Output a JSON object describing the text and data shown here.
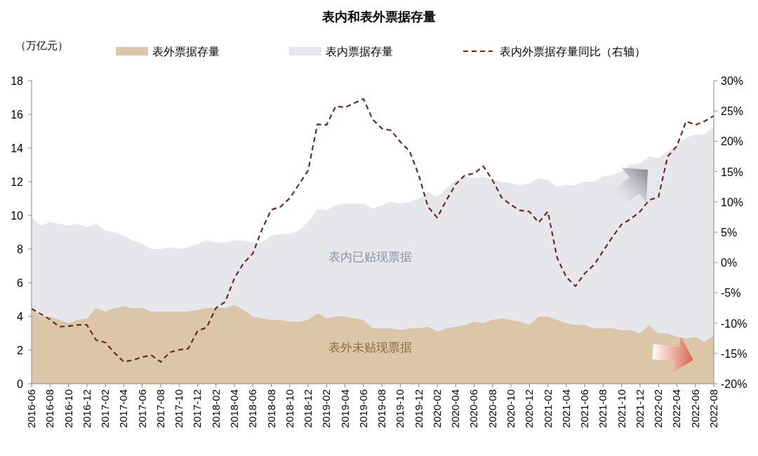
{
  "chart_data": {
    "type": "area",
    "title": "表内和表外票据存量",
    "ylabel": "（万亿元）",
    "stacked": true,
    "legend": "top",
    "grid": false,
    "categories": [
      "2016-06",
      null,
      "2016-08",
      null,
      "2016-10",
      null,
      "2016-12",
      null,
      "2017-02",
      null,
      "2017-04",
      null,
      "2017-06",
      null,
      "2017-08",
      null,
      "2017-10",
      null,
      "2017-12",
      null,
      "2018-02",
      null,
      "2018-04",
      null,
      "2018-06",
      null,
      "2018-08",
      null,
      "2018-10",
      null,
      "2018-12",
      null,
      "2019-02",
      null,
      "2019-04",
      null,
      "2019-06",
      null,
      "2019-08",
      null,
      "2019-10",
      null,
      "2019-12",
      null,
      "2020-02",
      null,
      "2020-04",
      null,
      "2020-06",
      null,
      "2020-08",
      null,
      "2020-10",
      null,
      "2020-12",
      null,
      "2021-02",
      null,
      "2021-04",
      null,
      "2021-06",
      null,
      "2021-08",
      null,
      "2021-10",
      null,
      "2021-12",
      null,
      "2022-02",
      null,
      "2022-04",
      null,
      "2022-06",
      null,
      "2022-08"
    ],
    "series": [
      {
        "name": "表外票据存量",
        "color": "#dcc6a8",
        "values": [
          4.5,
          4.0,
          4.0,
          3.8,
          3.6,
          3.8,
          3.9,
          4.5,
          4.3,
          4.5,
          4.6,
          4.5,
          4.5,
          4.3,
          4.3,
          4.3,
          4.3,
          4.3,
          4.4,
          4.5,
          4.5,
          4.5,
          4.7,
          4.4,
          4.0,
          3.9,
          3.8,
          3.8,
          3.7,
          3.7,
          3.8,
          4.2,
          3.9,
          4.0,
          4.0,
          3.9,
          3.8,
          3.3,
          3.3,
          3.3,
          3.2,
          3.3,
          3.3,
          3.4,
          3.1,
          3.3,
          3.4,
          3.5,
          3.7,
          3.6,
          3.8,
          3.9,
          3.8,
          3.7,
          3.5,
          4.0,
          4.0,
          3.8,
          3.6,
          3.5,
          3.5,
          3.3,
          3.3,
          3.3,
          3.2,
          3.2,
          3.0,
          3.5,
          3.0,
          3.0,
          2.8,
          2.7,
          2.8,
          2.5,
          2.9
        ]
      },
      {
        "name": "表内票据存量",
        "color": "#e6e7eb",
        "values": [
          5.4,
          5.4,
          5.6,
          5.7,
          5.8,
          5.7,
          5.4,
          5.0,
          4.8,
          4.5,
          4.2,
          4.0,
          3.8,
          3.7,
          3.7,
          3.8,
          3.7,
          3.8,
          3.9,
          4.0,
          3.9,
          3.9,
          3.8,
          4.1,
          4.4,
          4.5,
          5.0,
          5.1,
          5.2,
          5.4,
          5.8,
          6.2,
          6.4,
          6.6,
          6.7,
          6.8,
          6.9,
          7.1,
          7.3,
          7.5,
          7.5,
          7.5,
          7.7,
          8.0,
          8.0,
          8.3,
          8.7,
          8.8,
          8.5,
          8.7,
          8.3,
          8.1,
          8.1,
          8.1,
          8.4,
          8.2,
          8.1,
          7.9,
          8.2,
          8.3,
          8.5,
          8.7,
          9.0,
          9.1,
          9.4,
          9.8,
          10.1,
          10.0,
          10.4,
          10.8,
          11.4,
          11.9,
          12.0,
          12.3,
          12.4
        ]
      },
      {
        "name": "表内外票据存量同比（右轴）",
        "type": "line",
        "axis": "y2",
        "line_style": "dashed",
        "color": "#6b2a1e",
        "values": [
          -7.6,
          -8.5,
          -9.4,
          -10.6,
          -10.5,
          -10.3,
          -10.3,
          -12.8,
          -13.2,
          -14.9,
          -16.4,
          -16.1,
          -15.6,
          -15.3,
          -16.4,
          -14.8,
          -14.4,
          -14.2,
          -11.3,
          -10.7,
          -7.5,
          -6.5,
          -2.6,
          -0.1,
          1.5,
          5.5,
          8.7,
          9.2,
          10.6,
          12.9,
          15.2,
          22.8,
          22.7,
          25.8,
          25.6,
          26.3,
          27.0,
          23.6,
          22.1,
          21.8,
          19.9,
          18.4,
          14.4,
          9.2,
          7.4,
          10.3,
          12.9,
          14.4,
          14.7,
          15.9,
          13.6,
          10.7,
          9.5,
          8.6,
          8.4,
          6.6,
          8.4,
          0.8,
          -2.4,
          -3.9,
          -1.8,
          -0.4,
          1.9,
          4.2,
          6.3,
          7.2,
          8.4,
          10.3,
          10.8,
          17.5,
          19.2,
          23.3,
          22.7,
          23.3,
          24.2
        ]
      }
    ],
    "ylim": [
      0,
      18
    ],
    "yticks": [
      0,
      2,
      4,
      6,
      8,
      10,
      12,
      14,
      16,
      18
    ],
    "y2lim": [
      -20,
      30
    ],
    "y2ticks": [
      {
        "value": -20,
        "label": "-20%"
      },
      {
        "value": -15,
        "label": "-15%"
      },
      {
        "value": -10,
        "label": "-10%"
      },
      {
        "value": -5,
        "label": "-5%"
      },
      {
        "value": 0,
        "label": "0%"
      },
      {
        "value": 5,
        "label": "5%"
      },
      {
        "value": 10,
        "label": "10%"
      },
      {
        "value": 15,
        "label": "15%"
      },
      {
        "value": 20,
        "label": "20%"
      },
      {
        "value": 25,
        "label": "25%"
      },
      {
        "value": 30,
        "label": "30%"
      }
    ],
    "annotations": [
      "表内已贴现票据",
      "表外未贴现票据"
    ]
  }
}
